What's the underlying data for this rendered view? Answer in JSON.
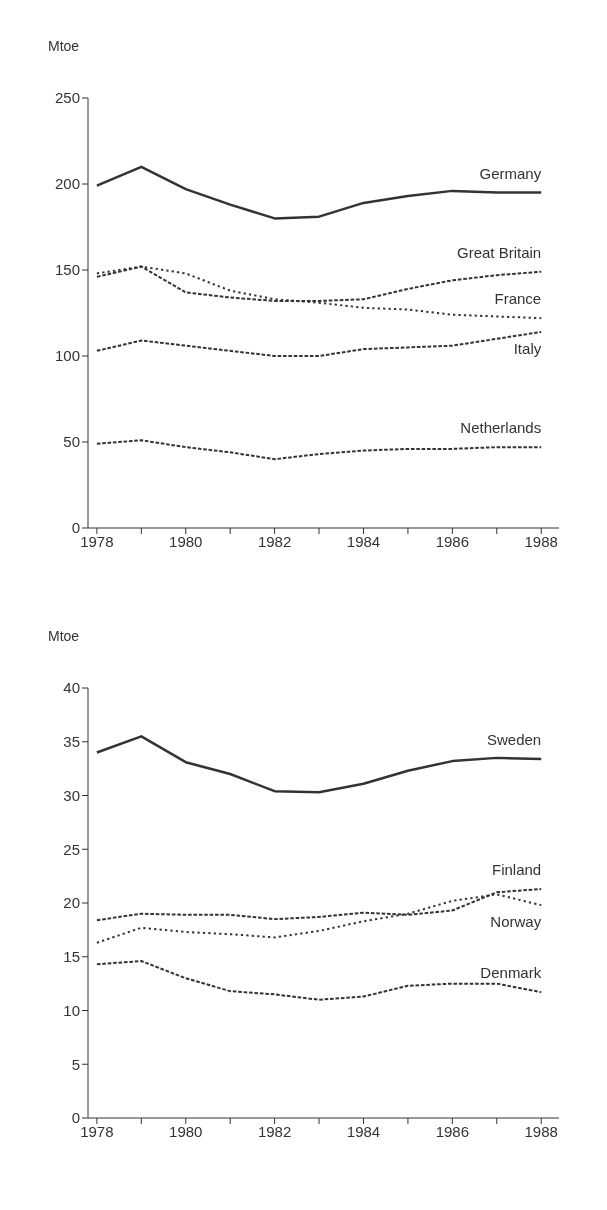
{
  "chart_data": [
    {
      "type": "line",
      "ylabel": "Mtoe",
      "x": [
        1978,
        1979,
        1980,
        1981,
        1982,
        1983,
        1984,
        1985,
        1986,
        1987,
        1988
      ],
      "xlim": [
        1977.8,
        1988.4
      ],
      "xticks": [
        1978,
        {
          "value": 1979,
          "label": null
        },
        1980,
        {
          "value": 1981,
          "label": null
        },
        1982,
        {
          "value": 1983,
          "label": null
        },
        1984,
        {
          "value": 1985,
          "label": null
        },
        1986,
        {
          "value": 1987,
          "label": null
        },
        1988
      ],
      "ylim": [
        0,
        250
      ],
      "yticks": [
        0,
        50,
        100,
        150,
        200,
        250
      ],
      "grid": false,
      "legend": false,
      "marker": "none",
      "series": [
        {
          "name": "Germany",
          "color": "#333333",
          "line_style": "solid",
          "values": [
            199,
            210,
            197,
            188,
            180,
            181,
            189,
            193,
            196,
            195,
            195
          ]
        },
        {
          "name": "Great Britain",
          "color": "#333333",
          "line_style": "dashed",
          "values": [
            146,
            152,
            137,
            134,
            132,
            132,
            133,
            139,
            144,
            147,
            149
          ]
        },
        {
          "name": "France",
          "color": "#333333",
          "line_style": "dotted",
          "values": [
            148,
            152,
            148,
            138,
            133,
            131,
            128,
            127,
            124,
            123,
            122
          ]
        },
        {
          "name": "Italy",
          "color": "#333333",
          "line_style": "dashed",
          "values": [
            103,
            109,
            106,
            103,
            100,
            100,
            104,
            105,
            106,
            110,
            114
          ]
        },
        {
          "name": "Netherlands",
          "color": "#333333",
          "line_style": "dashed",
          "values": [
            49,
            51,
            47,
            44,
            40,
            43,
            45,
            46,
            46,
            47,
            47
          ]
        }
      ]
    },
    {
      "type": "line",
      "ylabel": "Mtoe",
      "x": [
        1978,
        1979,
        1980,
        1981,
        1982,
        1983,
        1984,
        1985,
        1986,
        1987,
        1988
      ],
      "xlim": [
        1977.8,
        1988.4
      ],
      "xticks": [
        1978,
        {
          "value": 1979,
          "label": null
        },
        1980,
        {
          "value": 1981,
          "label": null
        },
        1982,
        {
          "value": 1983,
          "label": null
        },
        1984,
        {
          "value": 1985,
          "label": null
        },
        1986,
        {
          "value": 1987,
          "label": null
        },
        1988
      ],
      "ylim": [
        0,
        40
      ],
      "yticks": [
        0,
        5,
        10,
        15,
        20,
        25,
        30,
        35,
        40
      ],
      "grid": false,
      "legend": false,
      "marker": "none",
      "series": [
        {
          "name": "Sweden",
          "color": "#333333",
          "line_style": "solid",
          "values": [
            34,
            35.5,
            33.1,
            32,
            30.4,
            30.3,
            31.1,
            32.3,
            33.2,
            33.5,
            33.4
          ]
        },
        {
          "name": "Finland",
          "color": "#333333",
          "line_style": "dashed",
          "values": [
            18.4,
            19,
            18.9,
            18.9,
            18.5,
            18.7,
            19.1,
            18.9,
            19.3,
            21,
            21.3
          ]
        },
        {
          "name": "Norway",
          "color": "#333333",
          "line_style": "dotted",
          "values": [
            16.3,
            17.7,
            17.3,
            17.1,
            16.8,
            17.4,
            18.3,
            19,
            20.2,
            20.8,
            19.8
          ]
        },
        {
          "name": "Denmark",
          "color": "#333333",
          "line_style": "dashed",
          "values": [
            14.3,
            14.6,
            13,
            11.8,
            11.5,
            11,
            11.3,
            12.3,
            12.5,
            12.5,
            11.7
          ]
        }
      ]
    }
  ]
}
